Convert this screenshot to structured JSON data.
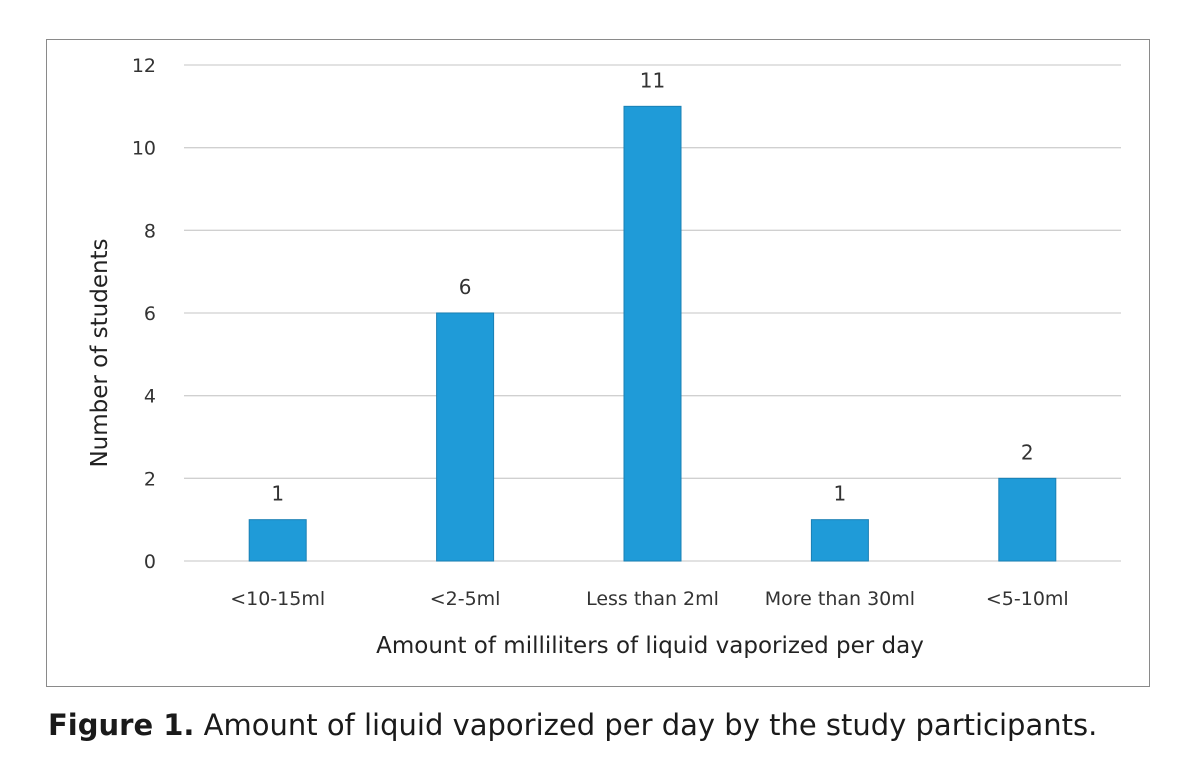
{
  "figure": {
    "label": "Figure 1.",
    "caption": " Amount of liquid vaporized per day by the study participants."
  },
  "colors": {
    "bar": "#1f9bd8",
    "bar_edge": "#1a80b5",
    "grid": "#d0d0d0"
  },
  "chart_data": {
    "type": "bar",
    "title": "",
    "xlabel": "Amount of milliliters of liquid vaporized per day",
    "ylabel": "Number of students",
    "categories": [
      "<10-15ml",
      "<2-5ml",
      "Less than 2ml",
      "More than 30ml",
      "<5-10ml"
    ],
    "values": [
      1,
      6,
      11,
      1,
      2
    ],
    "data_labels": [
      "1",
      "6",
      "11",
      "1",
      "2"
    ],
    "ylim": [
      0,
      12
    ],
    "yticks": [
      0,
      2,
      4,
      6,
      8,
      10,
      12
    ],
    "grid": true,
    "legend": "none"
  }
}
